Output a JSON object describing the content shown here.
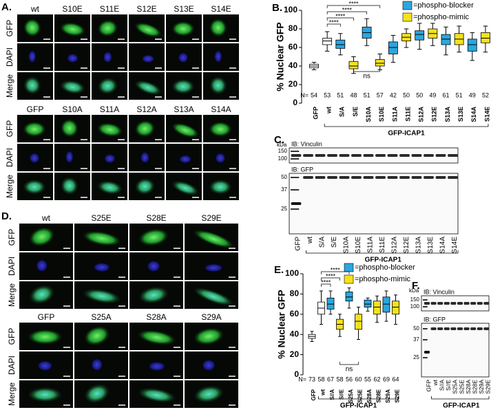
{
  "panels": {
    "A": {
      "label": "A.",
      "blocks": [
        {
          "columns": [
            "wt",
            "S10E",
            "S11E",
            "S12E",
            "S13E",
            "S14E"
          ],
          "rows": [
            "GFP",
            "DAPI",
            "Merge"
          ]
        },
        {
          "columns": [
            "GFP",
            "S10A",
            "S11A",
            "S12A",
            "S13A",
            "S14A"
          ],
          "rows": [
            "GFP",
            "DAPI",
            "Merge"
          ]
        }
      ]
    },
    "C": {
      "label": "C.",
      "kda": "kDa",
      "blots": [
        {
          "title": "IB: Vinculin",
          "markers": [
            150,
            100
          ]
        },
        {
          "title": "IB: GFP",
          "markers": [
            50,
            37,
            25
          ]
        }
      ],
      "lanes": [
        "GFP",
        "wt",
        "S/A",
        "S/E",
        "S10A",
        "S10E",
        "S11A",
        "S11E",
        "S12A",
        "S12E",
        "S13A",
        "S13E",
        "S14A",
        "S14E"
      ],
      "group": "GFP-ICAP1"
    },
    "D": {
      "label": "D.",
      "blocks": [
        {
          "columns": [
            "wt",
            "S25E",
            "S28E",
            "S29E"
          ],
          "rows": [
            "GFP",
            "DAPI",
            "Merge"
          ]
        },
        {
          "columns": [
            "GFP",
            "S25A",
            "S28A",
            "S29A"
          ],
          "rows": [
            "GFP",
            "DAPI",
            "Merge"
          ]
        }
      ]
    },
    "F": {
      "label": "F.",
      "kda": "kDa",
      "blots": [
        {
          "title": "IB: Vinculin",
          "markers": [
            150,
            100
          ]
        },
        {
          "title": "IB: GFP",
          "markers": [
            50,
            37,
            25
          ]
        }
      ],
      "lanes": [
        "GFP",
        "wt",
        "S//A",
        "S//E",
        "S25A",
        "S25E",
        "S28A",
        "S28E",
        "S29A",
        "S29E"
      ],
      "group": "GFP-ICAP1"
    }
  },
  "chart_data": [
    {
      "type": "box",
      "panel": "B.",
      "ylabel": "% Nuclear GFP",
      "categories": [
        "GFP",
        "wt",
        "S/A",
        "S/E",
        "S10A",
        "S10E",
        "S11A",
        "S11E",
        "S12A",
        "S12E",
        "S13A",
        "S13E",
        "S14A",
        "S14E"
      ],
      "min": [
        36,
        56,
        52,
        32,
        62,
        36,
        44,
        60,
        58,
        62,
        52,
        55,
        46,
        55
      ],
      "q1": [
        38,
        63,
        59,
        37,
        70,
        40,
        53,
        67,
        68,
        70,
        63,
        63,
        56,
        65
      ],
      "median": [
        40,
        67,
        63,
        40,
        76,
        43,
        60,
        71,
        74,
        75,
        69,
        69,
        63,
        70
      ],
      "q3": [
        42,
        70,
        68,
        45,
        82,
        47,
        66,
        75,
        78,
        80,
        74,
        75,
        69,
        76
      ],
      "max": [
        44,
        77,
        75,
        50,
        91,
        53,
        73,
        80,
        86,
        86,
        82,
        83,
        76,
        83
      ],
      "colors": [
        "#ffffff",
        "#ffffff",
        "#2ba6de",
        "#f4e21c",
        "#2ba6de",
        "#f4e21c",
        "#2ba6de",
        "#f4e21c",
        "#2ba6de",
        "#f4e21c",
        "#2ba6de",
        "#f4e21c",
        "#2ba6de",
        "#f4e21c"
      ],
      "ylim": [
        0,
        100
      ],
      "yticks": [
        0,
        20,
        40,
        60,
        80,
        100
      ],
      "n_label": "N=",
      "n": [
        54,
        53,
        51,
        48,
        51,
        57,
        42,
        50,
        50,
        49,
        61,
        51,
        49,
        52
      ],
      "legend": [
        {
          "name": "=phospho-blocker",
          "color": "#2ba6de"
        },
        {
          "name": "=phospho-mimic",
          "color": "#f4e21c"
        }
      ],
      "significance": [
        "****",
        "****",
        "****",
        "****"
      ],
      "ns": "ns",
      "group_label": "GFP-ICAP1"
    },
    {
      "type": "box",
      "panel": "E.",
      "ylabel": "% Nuclear GFP",
      "categories": [
        "GFP",
        "wt",
        "S//A",
        "S//E",
        "S25A",
        "S25E",
        "S28A",
        "S28E",
        "S29A",
        "S29E"
      ],
      "min": [
        33,
        50,
        60,
        38,
        66,
        35,
        63,
        52,
        53,
        50
      ],
      "q1": [
        36,
        60,
        65,
        45,
        73,
        45,
        67,
        60,
        62,
        60
      ],
      "median": [
        38,
        66,
        70,
        50,
        77,
        53,
        70,
        67,
        70,
        67
      ],
      "q3": [
        40,
        72,
        76,
        55,
        82,
        60,
        74,
        73,
        77,
        73
      ],
      "max": [
        43,
        83,
        83,
        60,
        86,
        67,
        76,
        78,
        83,
        79
      ],
      "colors": [
        "#ffffff",
        "#ffffff",
        "#2ba6de",
        "#f4e21c",
        "#2ba6de",
        "#f4e21c",
        "#2ba6de",
        "#f4e21c",
        "#2ba6de",
        "#f4e21c"
      ],
      "ylim": [
        0,
        100
      ],
      "yticks": [
        0,
        20,
        40,
        60,
        80,
        100
      ],
      "n_label": "N=",
      "n": [
        73,
        58,
        67,
        58,
        56,
        60,
        55,
        62,
        69,
        64
      ],
      "legend": [
        {
          "name": "=phospho-blocker",
          "color": "#2ba6de"
        },
        {
          "name": "=phospho-mimic",
          "color": "#f4e21c"
        }
      ],
      "significance": [
        "****",
        "****",
        "****"
      ],
      "ns": "ns",
      "group_label": "GFP-ICAP1"
    }
  ]
}
